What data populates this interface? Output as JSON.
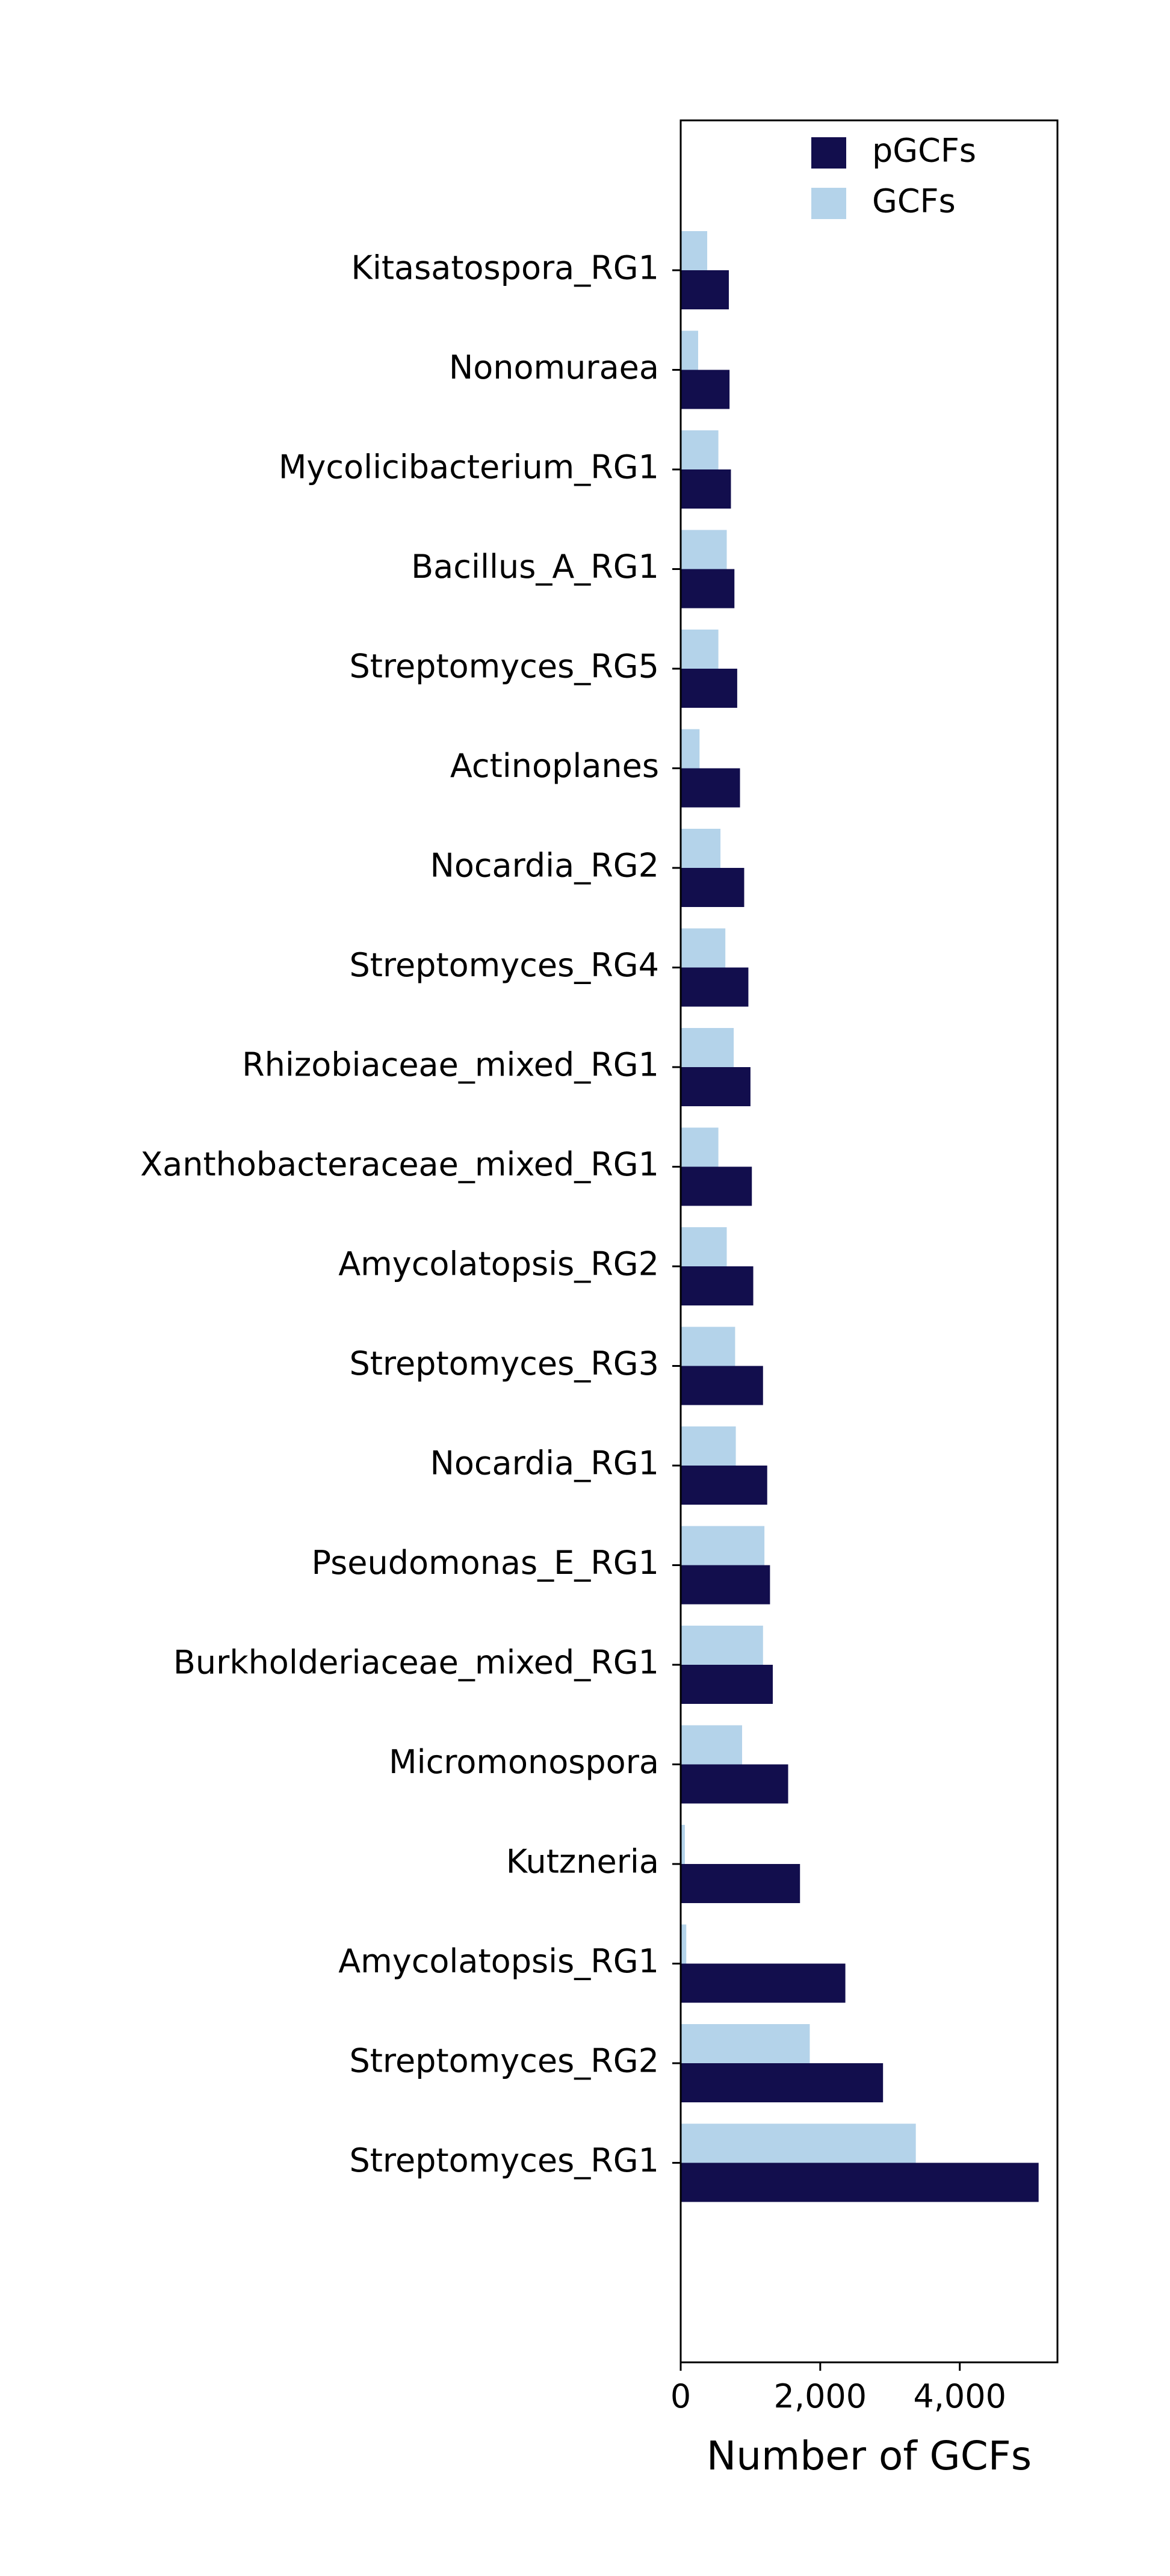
{
  "chart_data": {
    "type": "bar",
    "orientation": "horizontal",
    "title": "",
    "xlabel": "Number of GCFs",
    "ylabel": "",
    "xlim": [
      0,
      5400
    ],
    "xticks": [
      0,
      2000,
      4000
    ],
    "xtick_labels": [
      "0",
      "2,000",
      "4,000"
    ],
    "grid": false,
    "legend_position": "top-right",
    "categories": [
      "Kitasatospora_RG1",
      "Nonomuraea",
      "Mycolicibacterium_RG1",
      "Bacillus_A_RG1",
      "Streptomyces_RG5",
      "Actinoplanes",
      "Nocardia_RG2",
      "Streptomyces_RG4",
      "Rhizobiaceae_mixed_RG1",
      "Xanthobacteraceae_mixed_RG1",
      "Amycolatopsis_RG2",
      "Streptomyces_RG3",
      "Nocardia_RG1",
      "Pseudomonas_E_RG1",
      "Burkholderiaceae_mixed_RG1",
      "Micromonospora",
      "Kutzneria",
      "Amycolatopsis_RG1",
      "Streptomyces_RG2",
      "Streptomyces_RG1"
    ],
    "series": [
      {
        "name": "pGCFs",
        "color": "#120e4d",
        "values": [
          690,
          700,
          720,
          770,
          810,
          850,
          910,
          970,
          1000,
          1020,
          1040,
          1180,
          1240,
          1280,
          1320,
          1540,
          1710,
          2360,
          2900,
          5130
        ]
      },
      {
        "name": "GCFs",
        "color": "#b4d3ea",
        "values": [
          380,
          250,
          540,
          660,
          540,
          270,
          570,
          640,
          760,
          540,
          660,
          780,
          790,
          1200,
          1180,
          880,
          60,
          80,
          1850,
          3370
        ]
      }
    ]
  }
}
